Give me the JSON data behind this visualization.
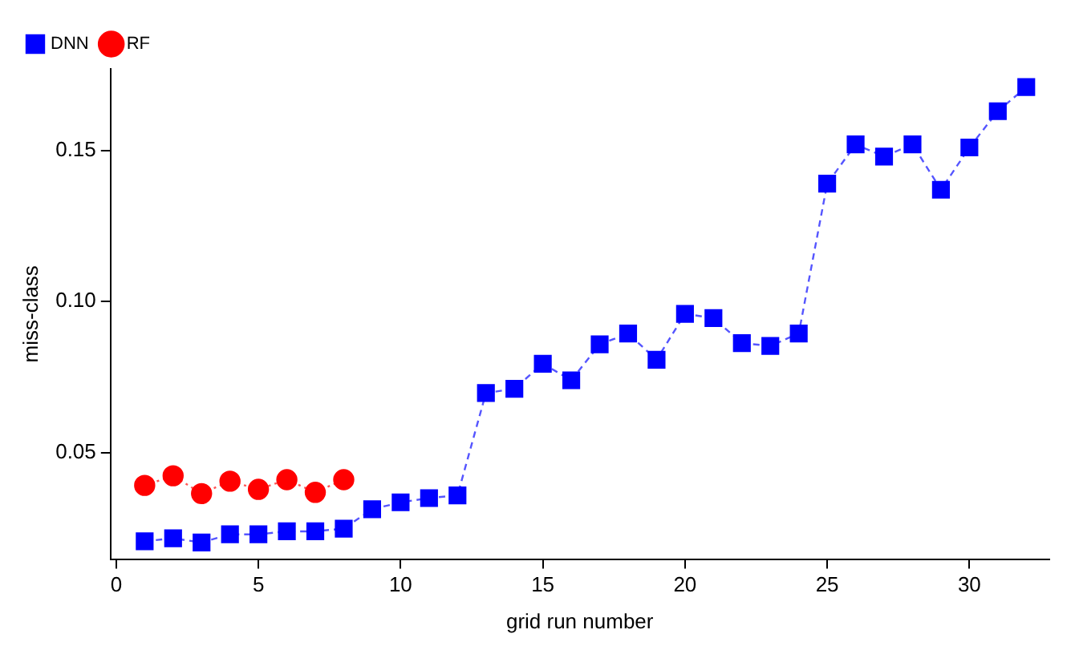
{
  "chart_data": {
    "type": "line",
    "xlabel": "grid run number",
    "ylabel": "miss-class",
    "x": [
      1,
      2,
      3,
      4,
      5,
      6,
      7,
      8,
      9,
      10,
      11,
      12,
      13,
      14,
      15,
      16,
      17,
      18,
      19,
      20,
      21,
      22,
      23,
      24,
      25,
      26,
      27,
      28,
      29,
      30,
      31,
      32
    ],
    "series": [
      {
        "name": "DNN",
        "color": "#0000ff",
        "marker": "square",
        "line_style": "dashed",
        "values": [
          0.0206,
          0.0216,
          0.0202,
          0.0229,
          0.0229,
          0.0239,
          0.0239,
          0.0248,
          0.0312,
          0.0335,
          0.0349,
          0.0358,
          0.0697,
          0.0711,
          0.0794,
          0.0739,
          0.0858,
          0.0894,
          0.0807,
          0.0959,
          0.0945,
          0.0862,
          0.0853,
          0.0894,
          0.139,
          0.152,
          0.148,
          0.152,
          0.137,
          0.151,
          0.163,
          0.171
        ]
      },
      {
        "name": "RF",
        "color": "#ff0000",
        "marker": "circle",
        "line_style": "dotted",
        "x": [
          1,
          2,
          3,
          4,
          5,
          6,
          7,
          8
        ],
        "values": [
          0.0391,
          0.0423,
          0.0364,
          0.0405,
          0.0378,
          0.041,
          0.0368,
          0.041
        ]
      }
    ],
    "xlim": [
      -0.2,
      32.8
    ],
    "xticks": [
      0,
      5,
      10,
      15,
      20,
      25,
      30
    ],
    "ylim": [
      0.0147,
      0.177
    ],
    "yticks": [
      0.05,
      {
        "value": 0.1,
        "label": "0.10"
      },
      0.15
    ],
    "grid": false,
    "legend": "top left"
  }
}
